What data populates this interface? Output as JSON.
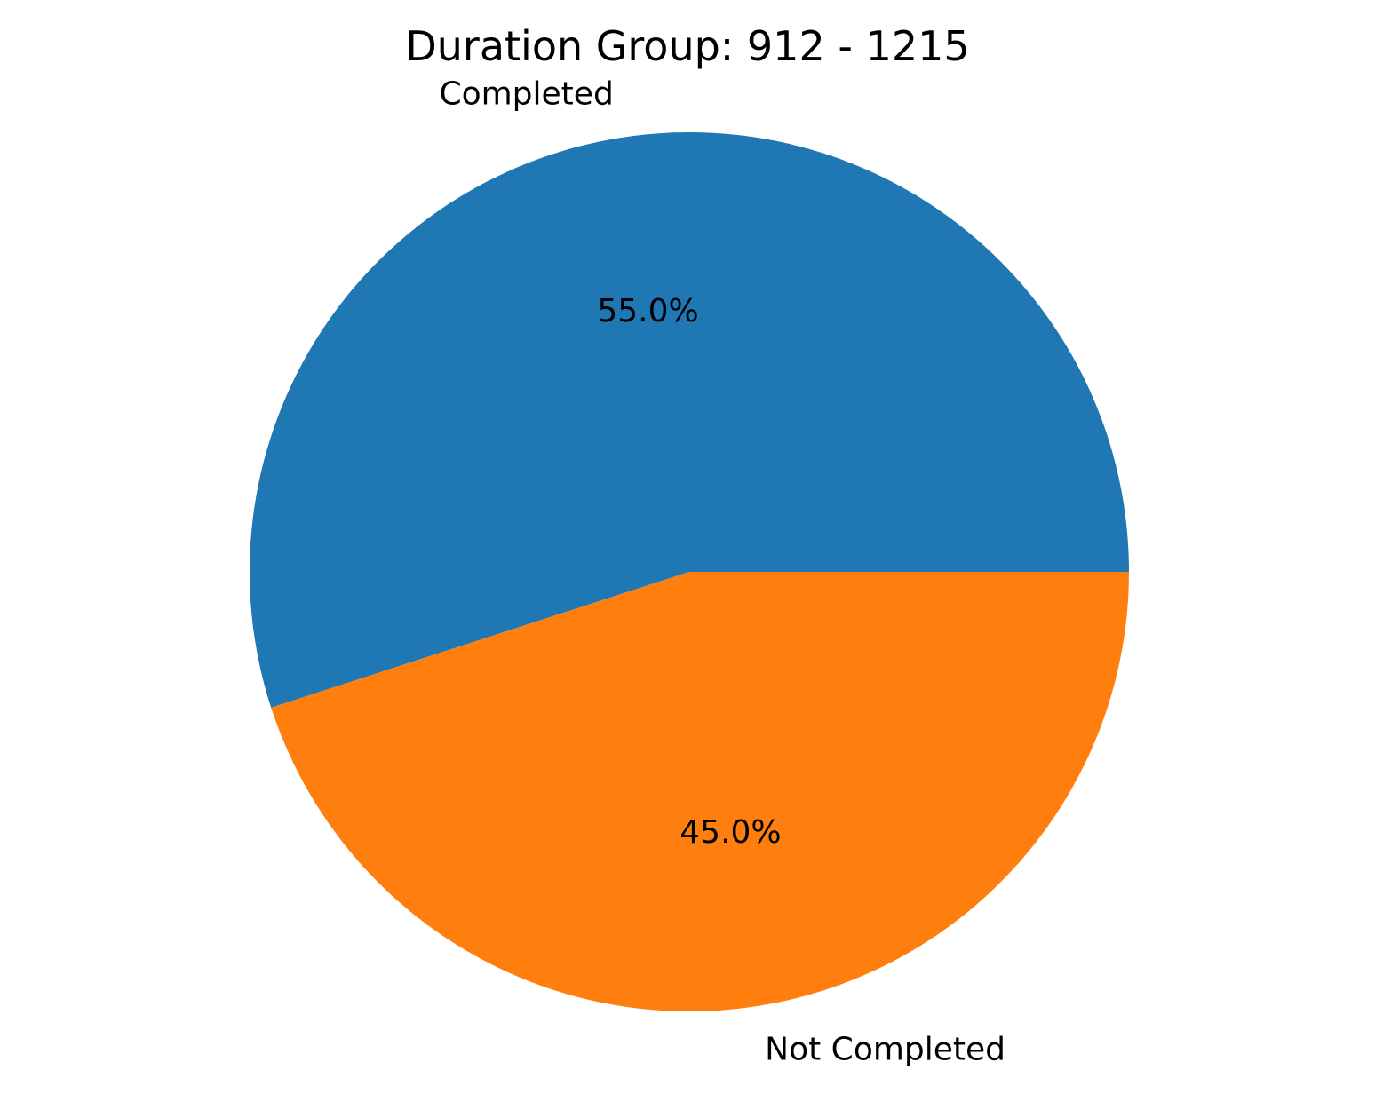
{
  "chart_data": {
    "type": "pie",
    "title": "Duration Group: 912 - 1215",
    "slices": [
      {
        "label": "Completed",
        "value": 55.0,
        "pct_label": "55.0%",
        "color": "#1f77b4"
      },
      {
        "label": "Not Completed",
        "value": 45.0,
        "pct_label": "45.0%",
        "color": "#ff7f0e"
      }
    ],
    "start_angle_deg": 0,
    "direction": "counterclockwise",
    "legend": "none"
  }
}
